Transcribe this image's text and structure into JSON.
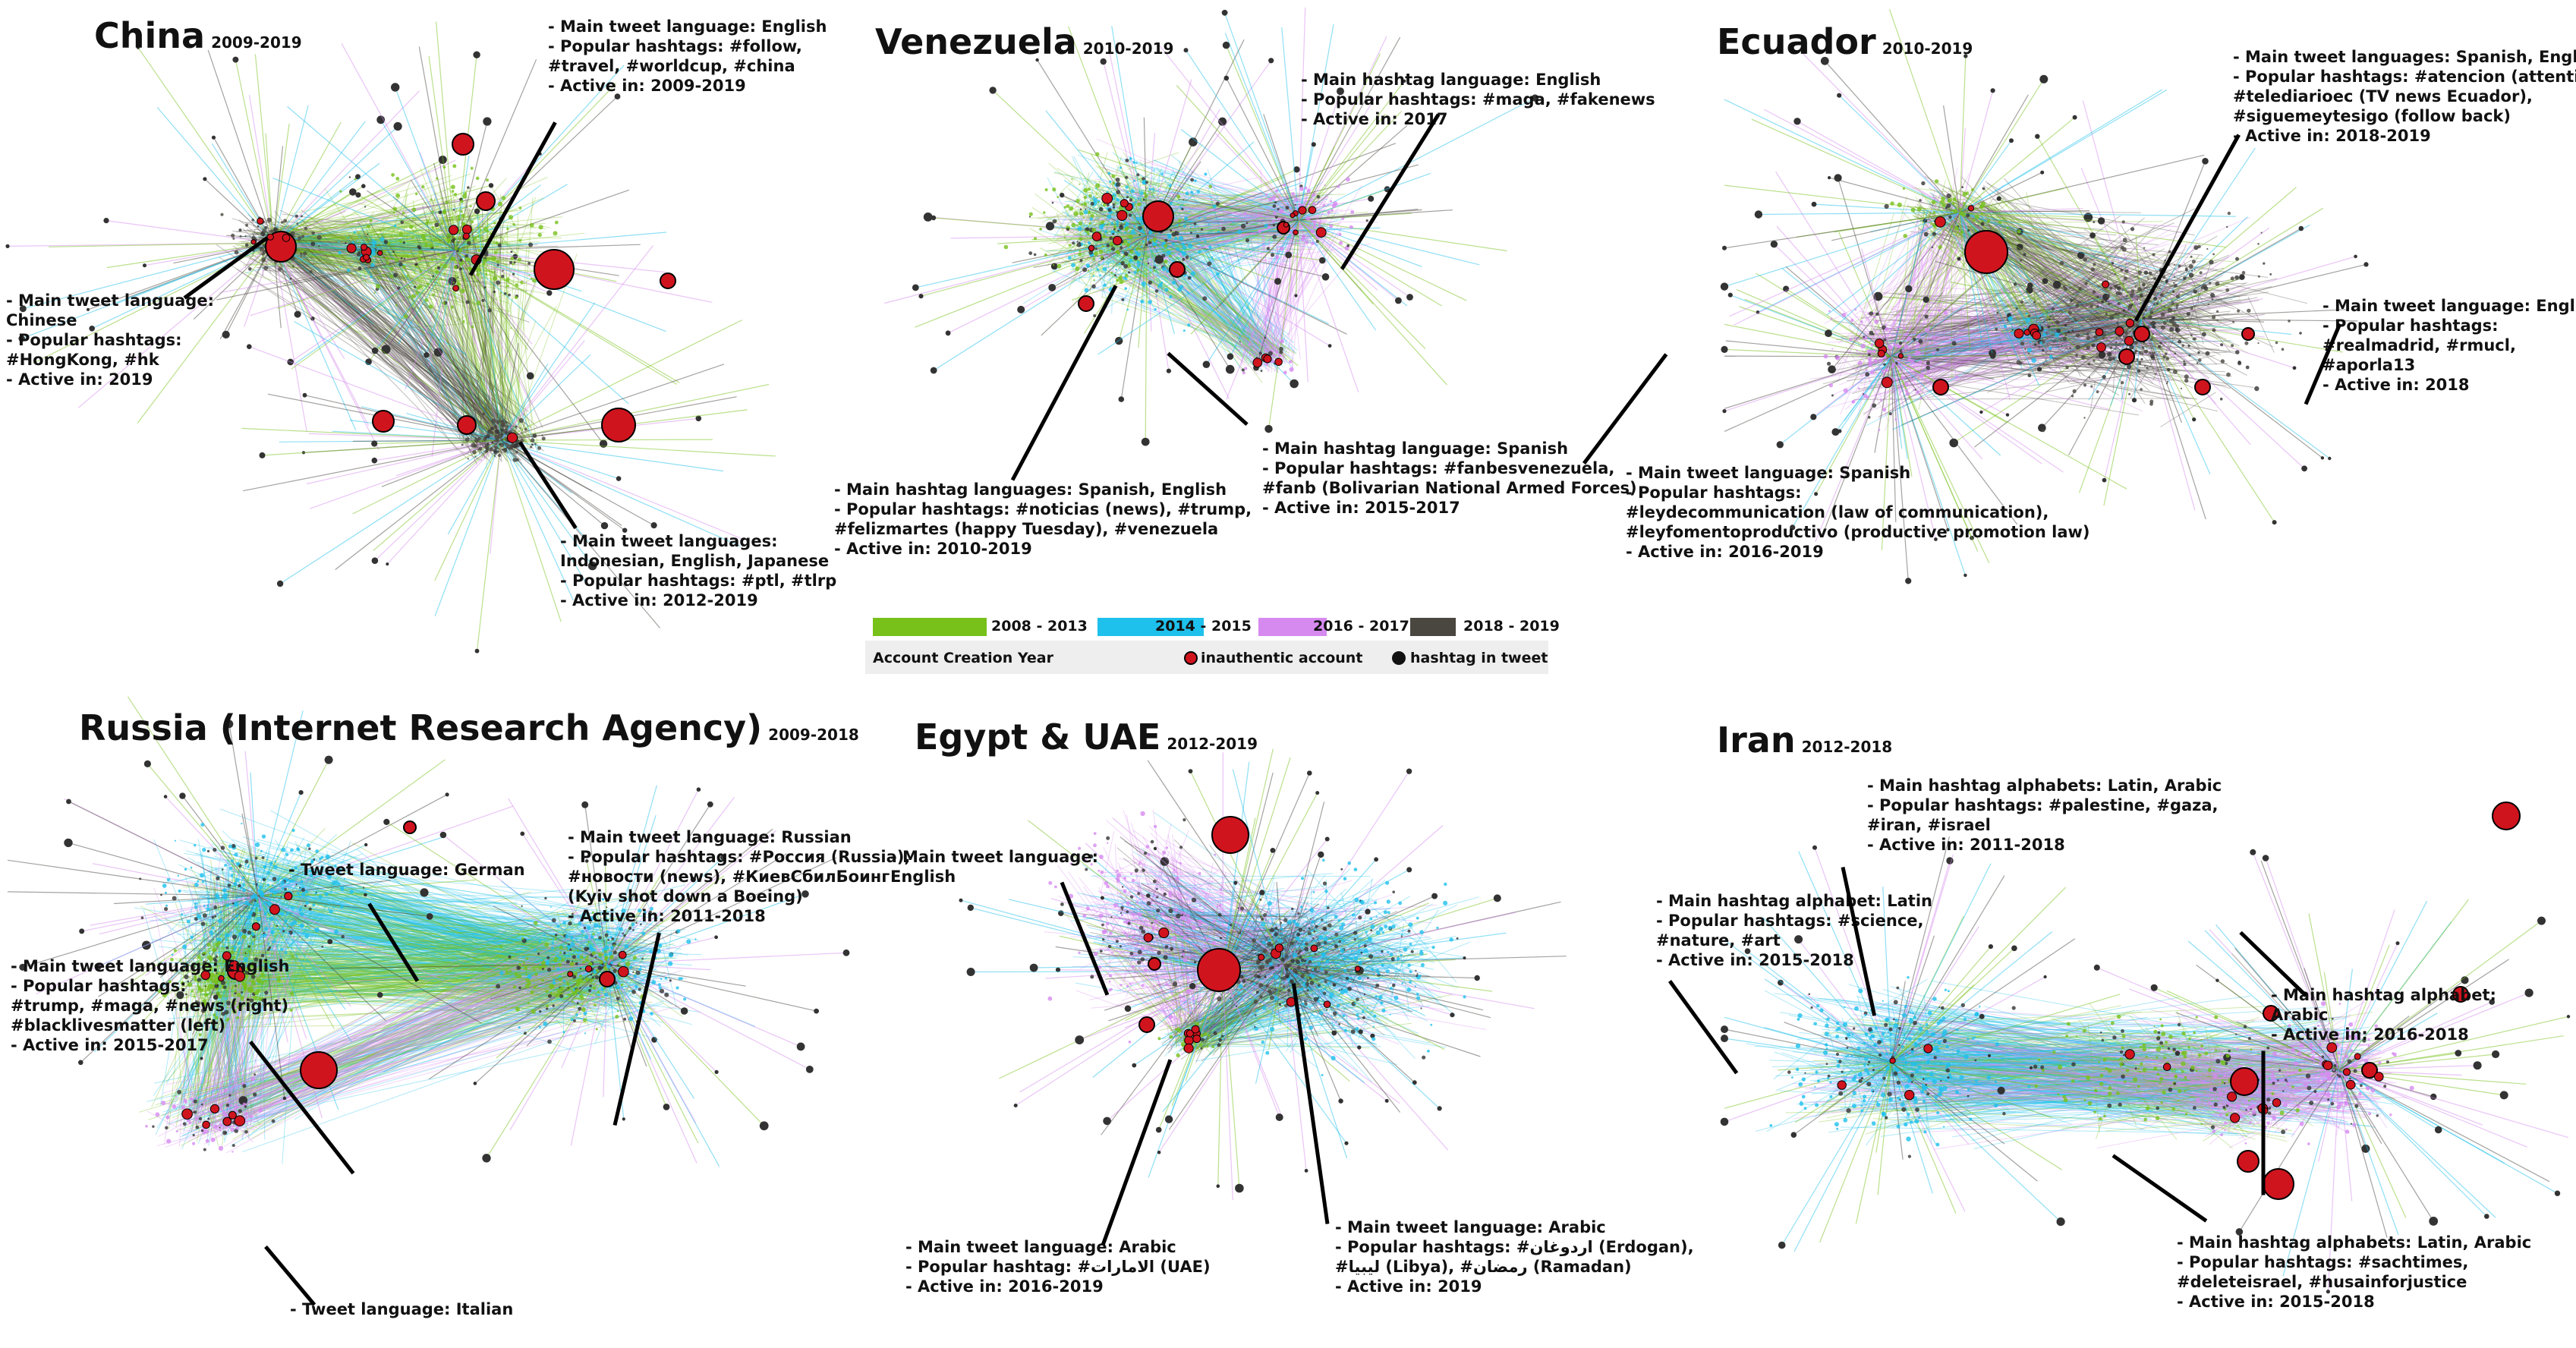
{
  "panels": [
    {
      "id": "china",
      "title": "China",
      "years": "2009-2019",
      "annotations": [
        [
          "- Main tweet language: English",
          "- Popular hashtags:  #follow,",
          "  #travel, #worldcup, #china",
          "- Active in: 2009-2019"
        ],
        [
          "- Main tweet language:",
          "  Chinese",
          "- Popular hashtags:",
          "  #HongKong, #hk",
          "- Active in: 2019"
        ],
        [
          "- Main tweet languages:",
          "  Indonesian, English, Japanese",
          "- Popular hashtags: #ptl, #tlrp",
          "- Active in: 2012-2019"
        ]
      ]
    },
    {
      "id": "venezuela",
      "title": "Venezuela",
      "years": "2010-2019",
      "annotations": [
        [
          "- Main hashtag language: English",
          "- Popular hashtags: #maga, #fakenews",
          "- Active in: 2017"
        ],
        [
          "- Main hashtag languages: Spanish, English",
          "- Popular hashtags: #noticias (news), #trump,",
          "  #felizmartes (happy Tuesday), #venezuela",
          "- Active in: 2010-2019"
        ],
        [
          "- Main hashtag language: Spanish",
          "- Popular hashtags: #fanbesvenezuela,",
          "  #fanb (Bolivarian National Armed Forces)",
          "- Active in: 2015-2017"
        ]
      ]
    },
    {
      "id": "ecuador",
      "title": "Ecuador",
      "years": "2010-2019",
      "annotations": [
        [
          "- Main tweet languages: Spanish, English",
          "- Popular hashtags: #atencion (attention),",
          "  #telediarioec (TV news Ecuador),",
          "  #siguemeytesigo (follow back)",
          "- Active in: 2018-2019"
        ],
        [
          "- Main tweet language: English",
          "- Popular hashtags:",
          "  #realmadrid, #rmucl,",
          "  #aporla13",
          "- Active in: 2018"
        ],
        [
          "- Main tweet language: Spanish",
          "- Popular hashtags:",
          "  #leydecommunication (law of communication),",
          "  #leyfomentoproductivo (productive promotion law)",
          "- Active in: 2016-2019"
        ]
      ]
    },
    {
      "id": "russia",
      "title": "Russia (Internet Research Agency)",
      "years": "2009-2018",
      "annotations": [
        [
          "- Tweet language: German"
        ],
        [
          "- Main tweet language: Russian",
          "- Popular hashtags: #Россия (Russia),",
          "  #новости (news), #КиевСбилБоинг",
          "  (Kyiv shot down a Boeing)",
          "- Active in: 2011-2018"
        ],
        [
          "- Main tweet language: English",
          "- Popular hashtags:",
          "  #trump, #maga, #news (right)",
          "  #blacklivesmatter (left)",
          "- Active in: 2015-2017"
        ],
        [
          "- Tweet language: Italian"
        ]
      ]
    },
    {
      "id": "egypt",
      "title": "Egypt & UAE",
      "years": "2012-2019",
      "annotations": [
        [
          "- Main tweet language:",
          "  English"
        ],
        [
          "- Main tweet language: Arabic",
          "- Popular hashtag: #الامارات (UAE)",
          "- Active in: 2016-2019"
        ],
        [
          "- Main tweet language: Arabic",
          "- Popular hashtags: #اردوغان (Erdogan),",
          "  #ليبيا (Libya), #رمضان (Ramadan)",
          "- Active in: 2019"
        ]
      ]
    },
    {
      "id": "iran",
      "title": "Iran",
      "years": "2012-2018",
      "annotations": [
        [
          "- Main hashtag alphabets: Latin, Arabic",
          "- Popular hashtags: #palestine, #gaza,",
          "  #iran, #israel",
          "- Active in: 2011-2018"
        ],
        [
          "- Main hashtag alphabet: Latin",
          "- Popular hashtags: #science,",
          "  #nature, #art",
          "- Active in: 2015-2018"
        ],
        [
          "- Main hashtag alphabet:",
          "  Arabic",
          "- Active in: 2016-2018"
        ],
        [
          "- Main hashtag alphabets: Latin, Arabic",
          "- Popular hashtags: #sachtimes,",
          "  #deleteisrael, #husainforjustice",
          "- Active in: 2015-2018"
        ]
      ]
    }
  ],
  "legend": {
    "items": [
      {
        "label": "2008 - 2013",
        "color": "#77c11a"
      },
      {
        "label": "2014 - 2015",
        "color": "#1ec0ec"
      },
      {
        "label": "2016 - 2017",
        "color": "#d68af0"
      },
      {
        "label": "2018 - 2019",
        "color": "#4a4640"
      }
    ],
    "caption": "Account Creation Year",
    "inauthentic_label": "inauthentic account",
    "inauthentic_color": "#d0141e",
    "hashtag_label": "hashtag in tweet",
    "hashtag_color": "#111111"
  },
  "colors": {
    "green": "#77c11a",
    "cyan": "#1ec0ec",
    "violet": "#d68af0",
    "gray": "#4a4640",
    "red": "#d0141e"
  }
}
